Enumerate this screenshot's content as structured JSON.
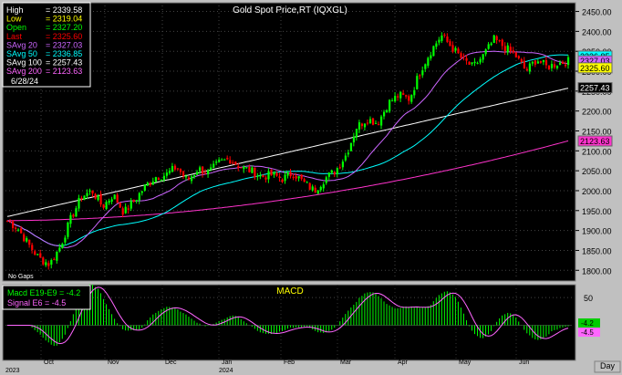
{
  "chart_data": [
    {
      "type": "candlestick",
      "title": "Gold Spot Price,RT (IQXGL)",
      "ylim": [
        1780,
        2465
      ],
      "yticks": [
        1800,
        1850,
        1900,
        1950,
        2000,
        2050,
        2100,
        2150,
        2200,
        2250,
        2300,
        2350,
        2400,
        2450
      ],
      "x_month_labels": [
        "Oct",
        "Nov",
        "Dec",
        "Jan",
        "Feb",
        "Mar",
        "Apr",
        "May",
        "Jun"
      ],
      "x_year_labels": [
        "2023",
        "2024"
      ],
      "footer_note": "No Gaps",
      "price_path": [
        1925,
        1905,
        1865,
        1830,
        1815,
        1860,
        1930,
        1985,
        2000,
        1960,
        1990,
        1945,
        1975,
        2010,
        2035,
        2040,
        2060,
        2025,
        2055,
        2045,
        2070,
        2080,
        2060,
        2050,
        2035,
        2040,
        2030,
        2045,
        2020,
        2000,
        2030,
        2050,
        2090,
        2160,
        2180,
        2170,
        2220,
        2240,
        2230,
        2300,
        2350,
        2390,
        2360,
        2330,
        2310,
        2340,
        2380,
        2360,
        2340,
        2300,
        2330,
        2310,
        2320,
        2325
      ],
      "legend": [
        {
          "label": "High",
          "value": "2339.58",
          "color": "#ffffff"
        },
        {
          "label": "Low",
          "value": "2319.04",
          "color": "#ffff00"
        },
        {
          "label": "Open",
          "value": "2327.20",
          "color": "#00ff00"
        },
        {
          "label": "Last",
          "value": "2325.60",
          "color": "#ff0000"
        },
        {
          "label": "SAvg 20",
          "value": "2327.03",
          "color": "#cc66ff"
        },
        {
          "label": "SAvg 50",
          "value": "2336.85",
          "color": "#00ffff"
        },
        {
          "label": "SAvg 100",
          "value": "2257.43",
          "color": "#ffffff"
        },
        {
          "label": "SAvg 200",
          "value": "2123.63",
          "color": "#ff66ff"
        }
      ],
      "date": "6/28/24",
      "price_tags": [
        {
          "value": 2336.85,
          "text": "2336.85",
          "bg": "#00ffff",
          "fg": "#000000"
        },
        {
          "value": 2327.03,
          "text": "2327.03",
          "bg": "#cc66ff",
          "fg": "#000000"
        },
        {
          "value": 2325.6,
          "text": "2325.60",
          "bg": "#ffff00",
          "fg": "#000000"
        },
        {
          "value": 2257.43,
          "text": "2257.43",
          "bg": "#000000",
          "fg": "#ffffff"
        },
        {
          "value": 2123.63,
          "text": "2123.63",
          "bg": "#ff33cc",
          "fg": "#000000"
        }
      ]
    },
    {
      "type": "bar",
      "title": "MACD",
      "ylim": [
        -60,
        70
      ],
      "yticks": [
        50
      ],
      "legend": [
        {
          "text": "Macd  E19-E9 = -4.2",
          "color": "#00ff00"
        },
        {
          "text": "Signal  E6  = -4.5",
          "color": "#ff66ff"
        }
      ],
      "tags": [
        {
          "value": -4.2,
          "text": "-4.2",
          "bg": "#00cc00"
        },
        {
          "value": -4.5,
          "text": "-4.5",
          "bg": "#ff66ff"
        }
      ]
    }
  ],
  "colors": {
    "up": "#00ff00",
    "down": "#ff0000",
    "sma20": "#cc66ff",
    "sma50": "#00ffff",
    "sma100": "#ffffff",
    "sma200": "#ff33cc",
    "signal": "#ff66ff"
  },
  "footer": {
    "period_label": "Day"
  }
}
